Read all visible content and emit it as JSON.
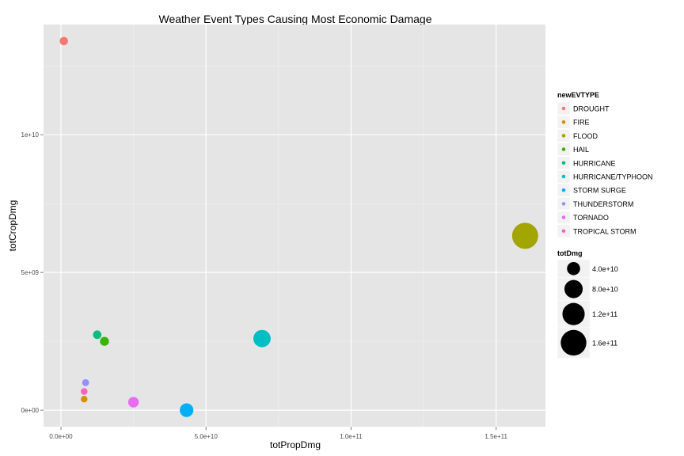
{
  "chart_data": {
    "type": "scatter",
    "title": "Weather Event Types Causing Most Economic Damage",
    "xlabel": "totPropDmg",
    "ylabel": "totCropDmg",
    "xlim": [
      -6000000000,
      167000000000
    ],
    "ylim": [
      -600000000,
      14000000000
    ],
    "xticks": [
      0,
      50000000000,
      100000000000,
      150000000000
    ],
    "xtick_labels": [
      "0.0e+00",
      "5.0e+10",
      "1.0e+11",
      "1.5e+11"
    ],
    "yticks": [
      0,
      5000000000,
      10000000000
    ],
    "ytick_labels": [
      "0e+00",
      "5e+09",
      "1e+10"
    ],
    "grid": true,
    "legend_position": "right",
    "color_legend": {
      "title": "newEVTYPE",
      "entries": [
        {
          "name": "DROUGHT",
          "color": "#F8766D"
        },
        {
          "name": "FIRE",
          "color": "#D89000"
        },
        {
          "name": "FLOOD",
          "color": "#A3A500"
        },
        {
          "name": "HAIL",
          "color": "#39B600"
        },
        {
          "name": "HURRICANE",
          "color": "#00BF7D"
        },
        {
          "name": "HURRICANE/TYPHOON",
          "color": "#00BFC4"
        },
        {
          "name": "STORM SURGE",
          "color": "#00B0F6"
        },
        {
          "name": "THUNDERSTORM",
          "color": "#9590FF"
        },
        {
          "name": "TORNADO",
          "color": "#E76BF3"
        },
        {
          "name": "TROPICAL STORM",
          "color": "#FF62BC"
        }
      ]
    },
    "size_legend": {
      "title": "totDmg",
      "entries": [
        {
          "label": "4.0e+10",
          "value": 40000000000
        },
        {
          "label": "8.0e+10",
          "value": 80000000000
        },
        {
          "label": "1.2e+11",
          "value": 120000000000
        },
        {
          "label": "1.6e+11",
          "value": 160000000000
        }
      ]
    },
    "points": [
      {
        "series": "DROUGHT",
        "x": 1000000000,
        "y": 13400000000,
        "size": 14400000000
      },
      {
        "series": "FIRE",
        "x": 8000000000,
        "y": 400000000,
        "size": 8400000000
      },
      {
        "series": "FLOOD",
        "x": 160000000000,
        "y": 6330000000,
        "size": 166330000000
      },
      {
        "series": "HAIL",
        "x": 15000000000,
        "y": 2500000000,
        "size": 17500000000
      },
      {
        "series": "HURRICANE",
        "x": 12500000000,
        "y": 2740000000,
        "size": 15240000000
      },
      {
        "series": "HURRICANE/TYPHOON",
        "x": 69300000000,
        "y": 2600000000,
        "size": 71900000000
      },
      {
        "series": "STORM SURGE",
        "x": 43300000000,
        "y": 0,
        "size": 43300000000
      },
      {
        "series": "THUNDERSTORM",
        "x": 8500000000,
        "y": 1000000000,
        "size": 9500000000
      },
      {
        "series": "TORNADO",
        "x": 25000000000,
        "y": 290000000,
        "size": 25290000000
      },
      {
        "series": "TROPICAL STORM",
        "x": 8000000000,
        "y": 680000000,
        "size": 8680000000
      }
    ]
  }
}
